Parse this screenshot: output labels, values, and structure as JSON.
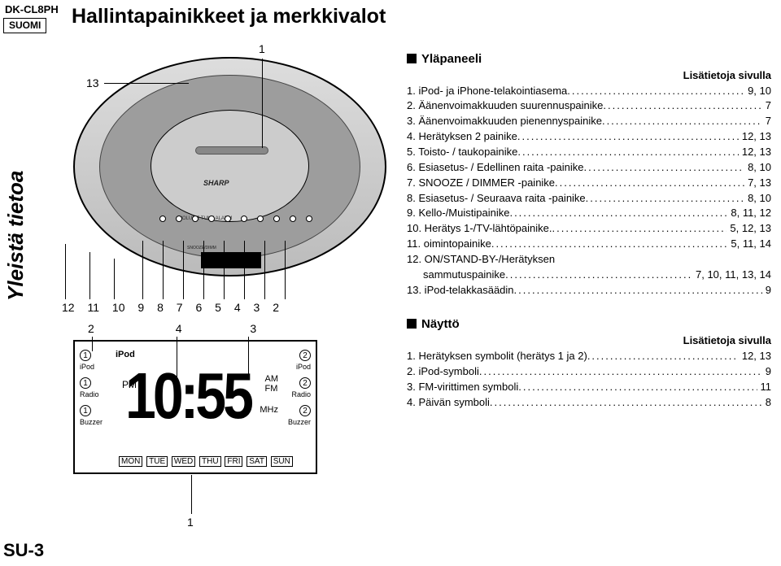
{
  "header": {
    "model": "DK-CL8PH",
    "lang_label": "SUOMI",
    "title": "Hallintapainikkeet ja merkkivalot"
  },
  "sidebar_text": "Yleistä tietoa",
  "page_number": "SU-3",
  "device": {
    "logo": "SHARP",
    "tiny_labels": "SNOOZE/DIMM",
    "tiny_text2": "SYSTEM for iPod & iPhone",
    "label_row": "VOLUME   TUNE   ALARM"
  },
  "callouts": {
    "top_left": "13",
    "top_right": "1",
    "bottom_row": [
      "12",
      "11",
      "10",
      "9",
      "8",
      "7",
      "6",
      "5",
      "4",
      "3",
      "2"
    ]
  },
  "display": {
    "ipod_label": "iPod",
    "time": "10:55",
    "pm": "PM",
    "amfm": "AM\nFM",
    "mhz": "MHz",
    "top_nums": [
      "2",
      "4",
      "3"
    ],
    "bottom_num": "1",
    "left_col": [
      {
        "n": "1",
        "l": "iPod"
      },
      {
        "n": "1",
        "l": "Radio"
      },
      {
        "n": "1",
        "l": "Buzzer"
      }
    ],
    "right_col": [
      {
        "n": "2",
        "l": "iPod"
      },
      {
        "n": "2",
        "l": "Radio"
      },
      {
        "n": "2",
        "l": "Buzzer"
      }
    ],
    "days": [
      "MON",
      "TUE",
      "WED",
      "THU",
      "FRI",
      "SAT",
      "SUN"
    ]
  },
  "top_panel": {
    "heading": "Yläpaneeli",
    "subhead": "Lisätietoja sivulla",
    "items": [
      {
        "label": "1. iPod- ja iPhone-telakointiasema",
        "pages": "9, 10"
      },
      {
        "label": "2. Äänenvoimakkuuden suurennuspainike",
        "pages": "7"
      },
      {
        "label": "3. Äänenvoimakkuuden pienennyspainike",
        "pages": "7"
      },
      {
        "label": "4. Herätyksen 2 painike",
        "pages": "12, 13"
      },
      {
        "label": "5. Toisto- / taukopainike",
        "pages": "12, 13"
      },
      {
        "label": "6. Esiasetus- / Edellinen raita -painike",
        "pages": "8, 10"
      },
      {
        "label": "7. SNOOZE / DIMMER -painike",
        "pages": "7, 13"
      },
      {
        "label": "8. Esiasetus- / Seuraava raita -painike",
        "pages": "8, 10"
      },
      {
        "label": "9. Kello-/Muistipainike",
        "pages": "8, 11, 12"
      },
      {
        "label": "10. Herätys 1-/TV-lähtöpainike.",
        "pages": "5, 12, 13"
      },
      {
        "label": "11. oimintopainike",
        "pages": "5, 11, 14"
      },
      {
        "label": "12. ON/STAND-BY-/Herätyksen",
        "pages": ""
      },
      {
        "label": "sammutuspainike",
        "pages": "7, 10, 11, 13, 14",
        "indent": true
      },
      {
        "label": "13. iPod-telakkasäädin",
        "pages": "9"
      }
    ]
  },
  "display_panel": {
    "heading": "Näyttö",
    "subhead": "Lisätietoja sivulla",
    "items": [
      {
        "label": "1. Herätyksen symbolit (herätys 1 ja 2)",
        "pages": "12, 13"
      },
      {
        "label": "2. iPod-symboli",
        "pages": "9"
      },
      {
        "label": "3. FM-virittimen symboli",
        "pages": "11"
      },
      {
        "label": "4. Päivän symboli",
        "pages": "8"
      }
    ]
  }
}
